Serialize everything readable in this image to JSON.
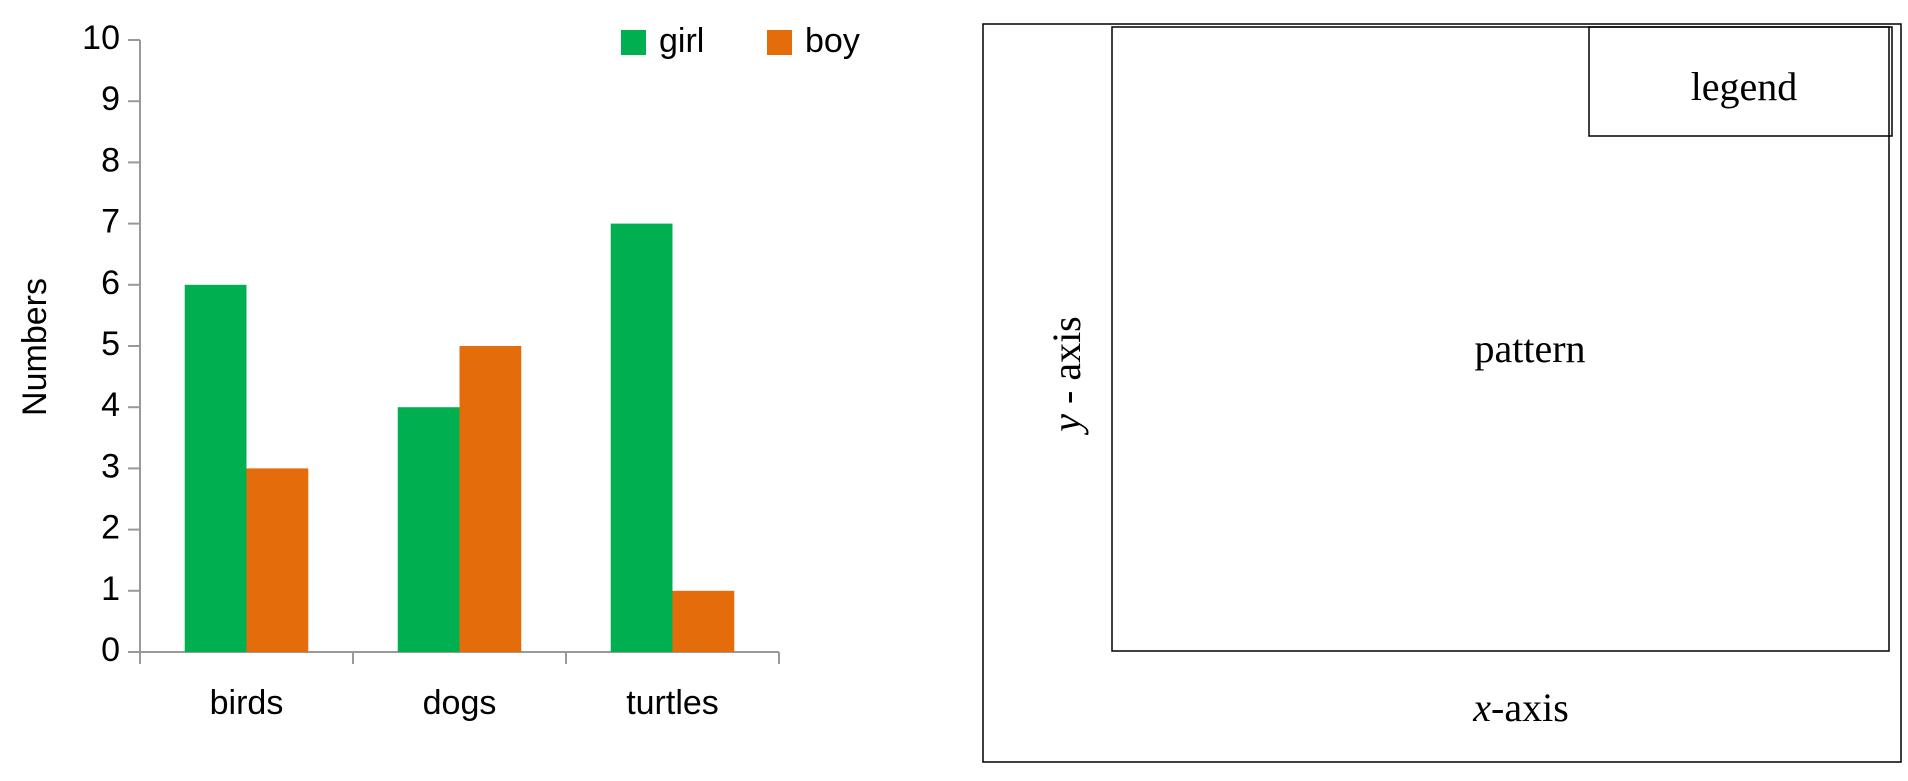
{
  "chart_data": {
    "type": "bar",
    "y_label": "Numbers",
    "categories": [
      "birds",
      "dogs",
      "turtles"
    ],
    "series": [
      {
        "name": "girl",
        "color": "#00b050",
        "values": [
          6,
          4,
          7
        ]
      },
      {
        "name": "boy",
        "color": "#e46c0a",
        "values": [
          3,
          5,
          1
        ]
      }
    ],
    "ylim": [
      0,
      10
    ],
    "yticks": [
      0,
      1,
      2,
      3,
      4,
      5,
      6,
      7,
      8,
      9,
      10
    ],
    "grid": false,
    "legend": "top-right"
  },
  "diagram": {
    "legend": "legend",
    "pattern": "pattern",
    "y_axis": {
      "variable": "y",
      "text": " - axis"
    },
    "x_axis": {
      "variable": "x",
      "text": "-axis"
    }
  }
}
